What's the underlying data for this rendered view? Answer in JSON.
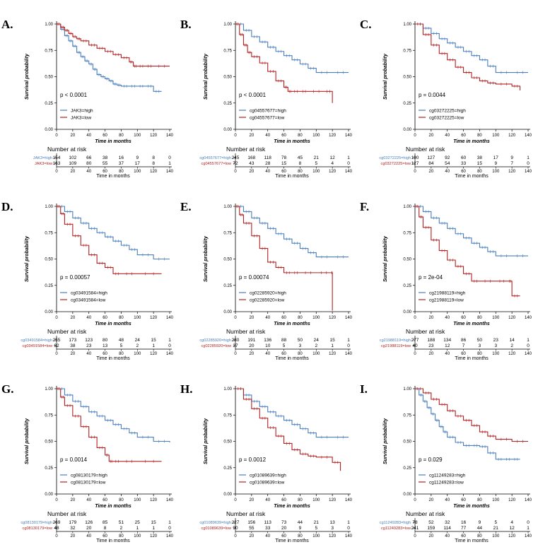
{
  "colors": {
    "high": "#4a7fbd",
    "low": "#b22222",
    "axis": "#000000"
  },
  "labels": {
    "ylabel": "Survival probability",
    "xlabel": "Time in months",
    "risk_title": "Number at risk",
    "risk_xlabel": "Time in months"
  },
  "chart_data": [
    {
      "letter": "A.",
      "type": "line",
      "pvalue": "p < 0.0001",
      "x_ticks": [
        0,
        20,
        40,
        60,
        80,
        100,
        120,
        140
      ],
      "y_ticks": [
        "0.00",
        "0.25",
        "0.50",
        "0.75",
        "1.00"
      ],
      "xlim": [
        0,
        140
      ],
      "ylim": [
        0,
        1
      ],
      "series": [
        {
          "group": "high",
          "name": "JAK3=high",
          "x": [
            0,
            5,
            10,
            15,
            20,
            25,
            30,
            35,
            40,
            45,
            50,
            55,
            60,
            65,
            70,
            75,
            80,
            90,
            100,
            110,
            120,
            130
          ],
          "y": [
            1,
            0.95,
            0.89,
            0.84,
            0.79,
            0.73,
            0.69,
            0.65,
            0.62,
            0.57,
            0.52,
            0.5,
            0.48,
            0.46,
            0.43,
            0.42,
            0.41,
            0.41,
            0.41,
            0.41,
            0.36,
            0.36
          ]
        },
        {
          "group": "low",
          "name": "JAK3=low",
          "x": [
            0,
            5,
            10,
            15,
            20,
            25,
            30,
            40,
            50,
            60,
            70,
            80,
            90,
            95,
            100,
            110,
            120,
            140
          ],
          "y": [
            1,
            0.97,
            0.94,
            0.91,
            0.88,
            0.86,
            0.84,
            0.8,
            0.77,
            0.74,
            0.71,
            0.68,
            0.64,
            0.6,
            0.6,
            0.6,
            0.6,
            0.6
          ]
        }
      ],
      "risk_times": [
        0,
        20,
        40,
        60,
        80,
        100,
        120,
        140
      ],
      "risk": {
        "high": [
          "154",
          "102",
          "66",
          "38",
          "16",
          "9",
          "8",
          "0"
        ],
        "low": [
          "163",
          "109",
          "80",
          "55",
          "37",
          "17",
          "8",
          "1"
        ]
      }
    },
    {
      "letter": "B.",
      "type": "line",
      "pvalue": "p < 0.0001",
      "x_ticks": [
        0,
        20,
        40,
        60,
        80,
        100,
        120,
        140
      ],
      "y_ticks": [
        "0.00",
        "0.25",
        "0.50",
        "0.75",
        "1.00"
      ],
      "xlim": [
        0,
        140
      ],
      "ylim": [
        0,
        1
      ],
      "series": [
        {
          "group": "high",
          "name": "cg04557677=high",
          "x": [
            0,
            10,
            20,
            30,
            40,
            50,
            60,
            70,
            80,
            90,
            100,
            120,
            140
          ],
          "y": [
            1,
            0.94,
            0.88,
            0.83,
            0.78,
            0.74,
            0.7,
            0.66,
            0.62,
            0.58,
            0.54,
            0.54,
            0.54
          ]
        },
        {
          "group": "low",
          "name": "cg04557677=low",
          "x": [
            0,
            5,
            10,
            15,
            20,
            30,
            40,
            50,
            60,
            65,
            70,
            80,
            90,
            110,
            120
          ],
          "y": [
            1,
            0.9,
            0.8,
            0.73,
            0.69,
            0.63,
            0.55,
            0.46,
            0.4,
            0.36,
            0.36,
            0.36,
            0.36,
            0.36,
            0.25
          ]
        }
      ],
      "risk_times": [
        0,
        20,
        40,
        60,
        80,
        100,
        120,
        140
      ],
      "risk": {
        "high": [
          "245",
          "168",
          "118",
          "78",
          "45",
          "21",
          "12",
          "1"
        ],
        "low": [
          "72",
          "43",
          "28",
          "15",
          "8",
          "5",
          "4",
          "0"
        ]
      }
    },
    {
      "letter": "C.",
      "type": "line",
      "pvalue": "p = 0.0044",
      "x_ticks": [
        0,
        20,
        40,
        60,
        80,
        100,
        120,
        140
      ],
      "y_ticks": [
        "0.00",
        "0.25",
        "0.50",
        "0.75",
        "1.00"
      ],
      "xlim": [
        0,
        140
      ],
      "ylim": [
        0,
        1
      ],
      "series": [
        {
          "group": "high",
          "name": "cg03272225=high",
          "x": [
            0,
            10,
            20,
            30,
            40,
            50,
            60,
            70,
            80,
            90,
            100,
            120,
            140
          ],
          "y": [
            1,
            0.96,
            0.91,
            0.86,
            0.82,
            0.78,
            0.74,
            0.7,
            0.66,
            0.6,
            0.54,
            0.54,
            0.54
          ]
        },
        {
          "group": "low",
          "name": "cg03272225=low",
          "x": [
            0,
            10,
            20,
            30,
            40,
            50,
            60,
            70,
            80,
            90,
            100,
            120,
            130
          ],
          "y": [
            1,
            0.9,
            0.8,
            0.72,
            0.66,
            0.59,
            0.54,
            0.49,
            0.46,
            0.44,
            0.43,
            0.41,
            0.37
          ]
        }
      ],
      "risk_times": [
        0,
        20,
        40,
        60,
        80,
        100,
        120,
        140
      ],
      "risk": {
        "high": [
          "190",
          "127",
          "92",
          "60",
          "38",
          "17",
          "9",
          "1"
        ],
        "low": [
          "127",
          "84",
          "54",
          "33",
          "15",
          "9",
          "7",
          "0"
        ]
      }
    },
    {
      "letter": "D.",
      "type": "line",
      "pvalue": "p = 0.00057",
      "x_ticks": [
        0,
        20,
        40,
        60,
        80,
        100,
        120,
        140
      ],
      "y_ticks": [
        "0.00",
        "0.25",
        "0.50",
        "0.75",
        "1.00"
      ],
      "xlim": [
        0,
        140
      ],
      "ylim": [
        0,
        1
      ],
      "series": [
        {
          "group": "high",
          "name": "cg03491584=high",
          "x": [
            0,
            10,
            20,
            30,
            40,
            50,
            60,
            70,
            80,
            90,
            100,
            120,
            140
          ],
          "y": [
            1,
            0.95,
            0.89,
            0.84,
            0.79,
            0.75,
            0.71,
            0.67,
            0.63,
            0.59,
            0.54,
            0.5,
            0.5
          ]
        },
        {
          "group": "low",
          "name": "cg03491584=low",
          "x": [
            0,
            5,
            10,
            20,
            30,
            40,
            50,
            60,
            70,
            80,
            100,
            130
          ],
          "y": [
            1,
            0.93,
            0.83,
            0.72,
            0.63,
            0.54,
            0.46,
            0.42,
            0.36,
            0.36,
            0.36,
            0.36
          ]
        }
      ],
      "risk_times": [
        0,
        20,
        40,
        60,
        80,
        100,
        120,
        140
      ],
      "risk": {
        "high": [
          "255",
          "173",
          "123",
          "80",
          "48",
          "24",
          "15",
          "1"
        ],
        "low": [
          "62",
          "38",
          "23",
          "13",
          "5",
          "2",
          "1",
          "0"
        ]
      }
    },
    {
      "letter": "E.",
      "type": "line",
      "pvalue": "p = 0.00074",
      "x_ticks": [
        0,
        20,
        40,
        60,
        80,
        100,
        120,
        140
      ],
      "y_ticks": [
        "0.00",
        "0.25",
        "0.50",
        "0.75",
        "1.00"
      ],
      "xlim": [
        0,
        140
      ],
      "ylim": [
        0,
        1
      ],
      "series": [
        {
          "group": "high",
          "name": "cg02285920=high",
          "x": [
            0,
            10,
            20,
            30,
            40,
            50,
            60,
            70,
            80,
            90,
            100,
            120,
            140
          ],
          "y": [
            1,
            0.95,
            0.89,
            0.84,
            0.79,
            0.74,
            0.69,
            0.65,
            0.6,
            0.56,
            0.52,
            0.52,
            0.52
          ]
        },
        {
          "group": "low",
          "name": "cg02285920=low",
          "x": [
            0,
            5,
            10,
            20,
            30,
            40,
            50,
            60,
            70,
            80,
            100,
            119,
            120
          ],
          "y": [
            1,
            0.92,
            0.84,
            0.72,
            0.6,
            0.47,
            0.42,
            0.37,
            0.37,
            0.37,
            0.37,
            0.37,
            0.01
          ]
        }
      ],
      "risk_times": [
        0,
        20,
        40,
        60,
        80,
        100,
        120,
        140
      ],
      "risk": {
        "high": [
          "280",
          "191",
          "136",
          "88",
          "50",
          "24",
          "15",
          "1"
        ],
        "low": [
          "37",
          "20",
          "10",
          "5",
          "3",
          "2",
          "1",
          "0"
        ]
      }
    },
    {
      "letter": "F.",
      "type": "line",
      "pvalue": "p = 2e-04",
      "x_ticks": [
        0,
        20,
        40,
        60,
        80,
        100,
        120,
        140
      ],
      "y_ticks": [
        "0.00",
        "0.25",
        "0.50",
        "0.75",
        "1.00"
      ],
      "xlim": [
        0,
        140
      ],
      "ylim": [
        0,
        1
      ],
      "series": [
        {
          "group": "high",
          "name": "cg21988119=high",
          "x": [
            0,
            10,
            20,
            30,
            40,
            50,
            60,
            70,
            80,
            90,
            100,
            120,
            140
          ],
          "y": [
            1,
            0.95,
            0.89,
            0.84,
            0.79,
            0.74,
            0.7,
            0.65,
            0.61,
            0.57,
            0.53,
            0.53,
            0.53
          ]
        },
        {
          "group": "low",
          "name": "cg21988119=low",
          "x": [
            0,
            5,
            10,
            20,
            30,
            40,
            50,
            60,
            70,
            80,
            100,
            115,
            120,
            130
          ],
          "y": [
            1,
            0.9,
            0.8,
            0.68,
            0.58,
            0.49,
            0.43,
            0.36,
            0.29,
            0.29,
            0.29,
            0.29,
            0.15,
            0.15
          ]
        }
      ],
      "risk_times": [
        0,
        20,
        40,
        60,
        80,
        100,
        120,
        140
      ],
      "risk": {
        "high": [
          "277",
          "188",
          "134",
          "86",
          "50",
          "23",
          "14",
          "1"
        ],
        "low": [
          "40",
          "23",
          "12",
          "7",
          "3",
          "3",
          "2",
          "0"
        ]
      }
    },
    {
      "letter": "G.",
      "type": "line",
      "pvalue": "p = 0.0014",
      "x_ticks": [
        0,
        20,
        40,
        60,
        80,
        100,
        120,
        140
      ],
      "y_ticks": [
        "0.00",
        "0.25",
        "0.50",
        "0.75",
        "1.00"
      ],
      "xlim": [
        0,
        140
      ],
      "ylim": [
        0,
        1
      ],
      "series": [
        {
          "group": "high",
          "name": "cg08130179=high",
          "x": [
            0,
            10,
            20,
            30,
            40,
            50,
            60,
            70,
            80,
            90,
            100,
            120,
            140
          ],
          "y": [
            1,
            0.94,
            0.88,
            0.83,
            0.78,
            0.74,
            0.7,
            0.66,
            0.62,
            0.58,
            0.54,
            0.5,
            0.49
          ]
        },
        {
          "group": "low",
          "name": "cg08130179=low",
          "x": [
            0,
            5,
            10,
            20,
            30,
            40,
            50,
            60,
            65,
            70,
            80,
            100,
            130
          ],
          "y": [
            1,
            0.92,
            0.84,
            0.74,
            0.64,
            0.54,
            0.44,
            0.37,
            0.31,
            0.31,
            0.31,
            0.31,
            0.31
          ]
        }
      ],
      "risk_times": [
        0,
        20,
        40,
        60,
        80,
        100,
        120,
        140
      ],
      "risk": {
        "high": [
          "269",
          "179",
          "126",
          "85",
          "51",
          "25",
          "15",
          "1"
        ],
        "low": [
          "48",
          "32",
          "20",
          "8",
          "2",
          "1",
          "1",
          "0"
        ]
      }
    },
    {
      "letter": "H.",
      "type": "line",
      "pvalue": "p = 0.0012",
      "x_ticks": [
        0,
        20,
        40,
        60,
        80,
        100,
        120,
        140
      ],
      "y_ticks": [
        "0.00",
        "0.25",
        "0.50",
        "0.75",
        "1.00"
      ],
      "xlim": [
        0,
        140
      ],
      "ylim": [
        0,
        1
      ],
      "series": [
        {
          "group": "high",
          "name": "cg01089639=high",
          "x": [
            0,
            10,
            20,
            30,
            40,
            50,
            60,
            70,
            80,
            90,
            100,
            120,
            140
          ],
          "y": [
            1,
            0.94,
            0.88,
            0.83,
            0.78,
            0.74,
            0.7,
            0.66,
            0.62,
            0.58,
            0.54,
            0.54,
            0.54
          ]
        },
        {
          "group": "low",
          "name": "cg01089639=low",
          "x": [
            0,
            10,
            20,
            30,
            40,
            50,
            60,
            70,
            80,
            90,
            100,
            120,
            130
          ],
          "y": [
            1,
            0.9,
            0.81,
            0.72,
            0.63,
            0.55,
            0.48,
            0.42,
            0.38,
            0.36,
            0.35,
            0.3,
            0.22
          ]
        }
      ],
      "risk_times": [
        0,
        20,
        40,
        60,
        80,
        100,
        120,
        140
      ],
      "risk": {
        "high": [
          "227",
          "156",
          "113",
          "73",
          "44",
          "21",
          "13",
          "1"
        ],
        "low": [
          "90",
          "55",
          "33",
          "20",
          "9",
          "5",
          "3",
          "0"
        ]
      }
    },
    {
      "letter": "I.",
      "type": "line",
      "pvalue": "p = 0.029",
      "x_ticks": [
        0,
        20,
        40,
        60,
        80,
        100,
        120,
        140
      ],
      "y_ticks": [
        "0.00",
        "0.25",
        "0.50",
        "0.75",
        "1.00"
      ],
      "xlim": [
        0,
        140
      ],
      "ylim": [
        0,
        1
      ],
      "series": [
        {
          "group": "high",
          "name": "cg11249283=high",
          "x": [
            0,
            5,
            10,
            15,
            20,
            25,
            30,
            35,
            40,
            50,
            60,
            70,
            80,
            90,
            100,
            110,
            120,
            130
          ],
          "y": [
            1,
            0.94,
            0.88,
            0.82,
            0.76,
            0.7,
            0.64,
            0.59,
            0.54,
            0.49,
            0.46,
            0.46,
            0.45,
            0.39,
            0.33,
            0.33,
            0.33,
            0.33
          ]
        },
        {
          "group": "low",
          "name": "cg11249283=low",
          "x": [
            0,
            10,
            20,
            30,
            40,
            50,
            60,
            70,
            80,
            90,
            100,
            120,
            140
          ],
          "y": [
            1,
            0.96,
            0.9,
            0.85,
            0.79,
            0.74,
            0.7,
            0.65,
            0.59,
            0.55,
            0.52,
            0.5,
            0.5
          ]
        }
      ],
      "risk_times": [
        0,
        20,
        40,
        60,
        80,
        100,
        120,
        140
      ],
      "risk": {
        "high": [
          "78",
          "52",
          "32",
          "16",
          "9",
          "5",
          "4",
          "0"
        ],
        "low": [
          "241",
          "159",
          "114",
          "77",
          "44",
          "21",
          "12",
          "1"
        ]
      }
    }
  ]
}
